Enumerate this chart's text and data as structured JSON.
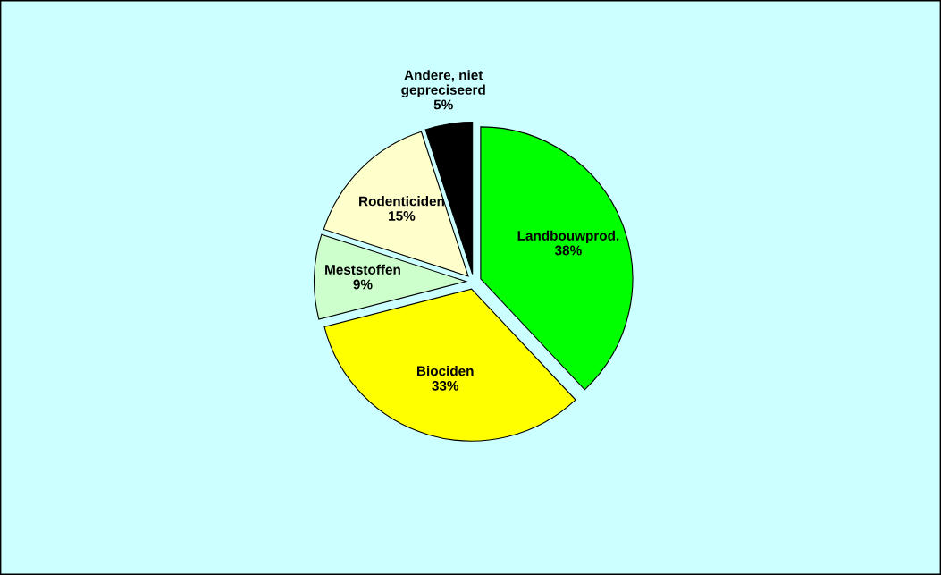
{
  "chart_data": {
    "type": "pie",
    "categories": [
      "Landbouwprod.",
      "Biociden",
      "Meststoffen",
      "Rodenticiden",
      "Andere, niet gepreciseerd"
    ],
    "values": [
      38,
      33,
      9,
      15,
      5
    ],
    "colors": [
      "#00ff00",
      "#ffff00",
      "#ccffcc",
      "#ffffcc",
      "#000000"
    ],
    "value_labels": [
      "38%",
      "33%",
      "9%",
      "15%",
      "5%"
    ]
  }
}
